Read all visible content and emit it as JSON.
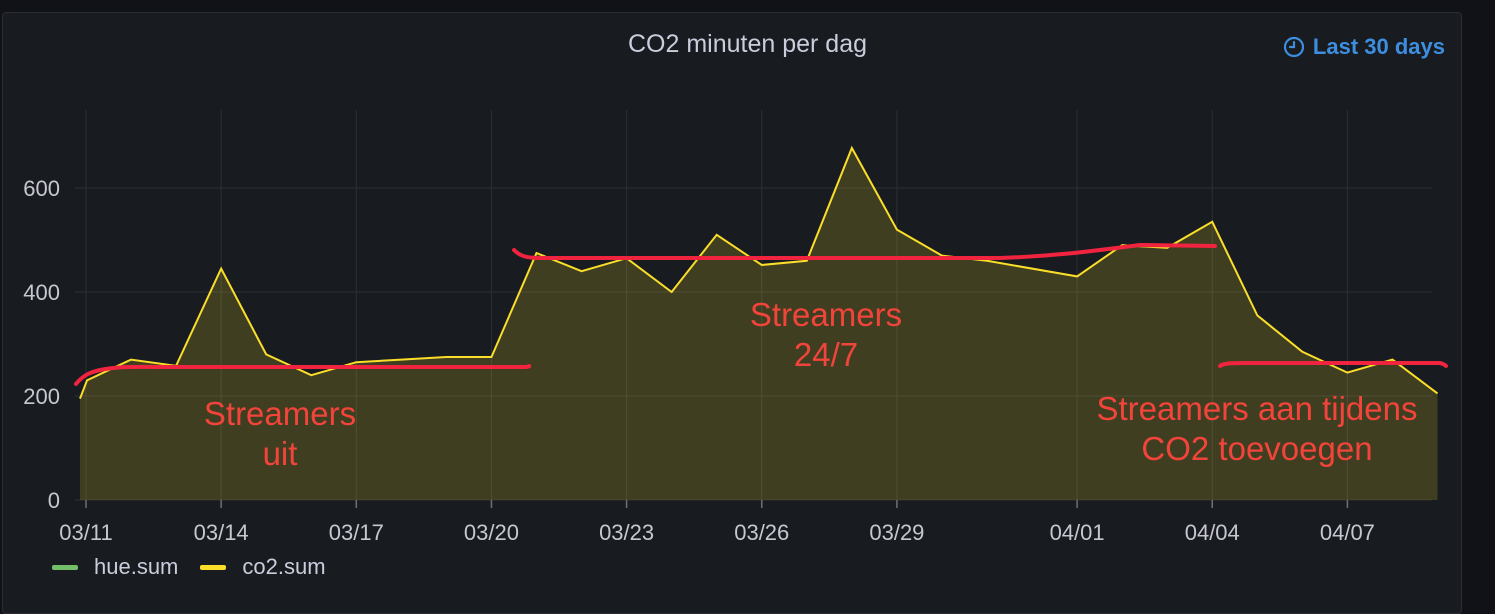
{
  "panel": {
    "title": "CO2 minuten per dag",
    "time_range_label": "Last 30 days",
    "time_range_icon": "clock-icon",
    "accent_color": "#3d8ee0"
  },
  "chart_data": {
    "type": "area",
    "title": "CO2 minuten per dag",
    "x_ticks": [
      "03/11",
      "03/14",
      "03/17",
      "03/20",
      "03/23",
      "03/26",
      "03/29",
      "04/01",
      "04/04",
      "04/07"
    ],
    "y_ticks": [
      "0",
      "200",
      "400",
      "600"
    ],
    "ylim": [
      0,
      750
    ],
    "grid": true,
    "legend_placement": "bottom-left",
    "series": [
      {
        "name": "hue.sum",
        "color": "#73bf69",
        "values": []
      },
      {
        "name": "co2.sum",
        "color": "#fade2a",
        "x": [
          "03/11",
          "03/11",
          "03/12",
          "03/13",
          "03/14",
          "03/15",
          "03/16",
          "03/17",
          "03/18",
          "03/19",
          "03/20",
          "03/21",
          "03/22",
          "03/23",
          "03/24",
          "03/25",
          "03/26",
          "03/27",
          "03/28",
          "03/29",
          "03/30",
          "03/31",
          "04/01",
          "04/02",
          "04/03",
          "04/04",
          "04/05",
          "04/06",
          "04/07",
          "04/08",
          "04/09"
        ],
        "values": [
          195,
          230,
          270,
          258,
          445,
          280,
          240,
          265,
          270,
          275,
          275,
          475,
          440,
          465,
          400,
          510,
          452,
          460,
          677,
          520,
          470,
          460,
          430,
          490,
          485,
          535,
          355,
          285,
          245,
          270,
          205
        ]
      }
    ],
    "annotations": [
      {
        "lines": [
          "Streamers",
          "uit"
        ]
      },
      {
        "lines": [
          "Streamers",
          "24/7"
        ]
      },
      {
        "lines": [
          "Streamers aan tijdens",
          "CO2 toevoegen"
        ]
      }
    ]
  }
}
